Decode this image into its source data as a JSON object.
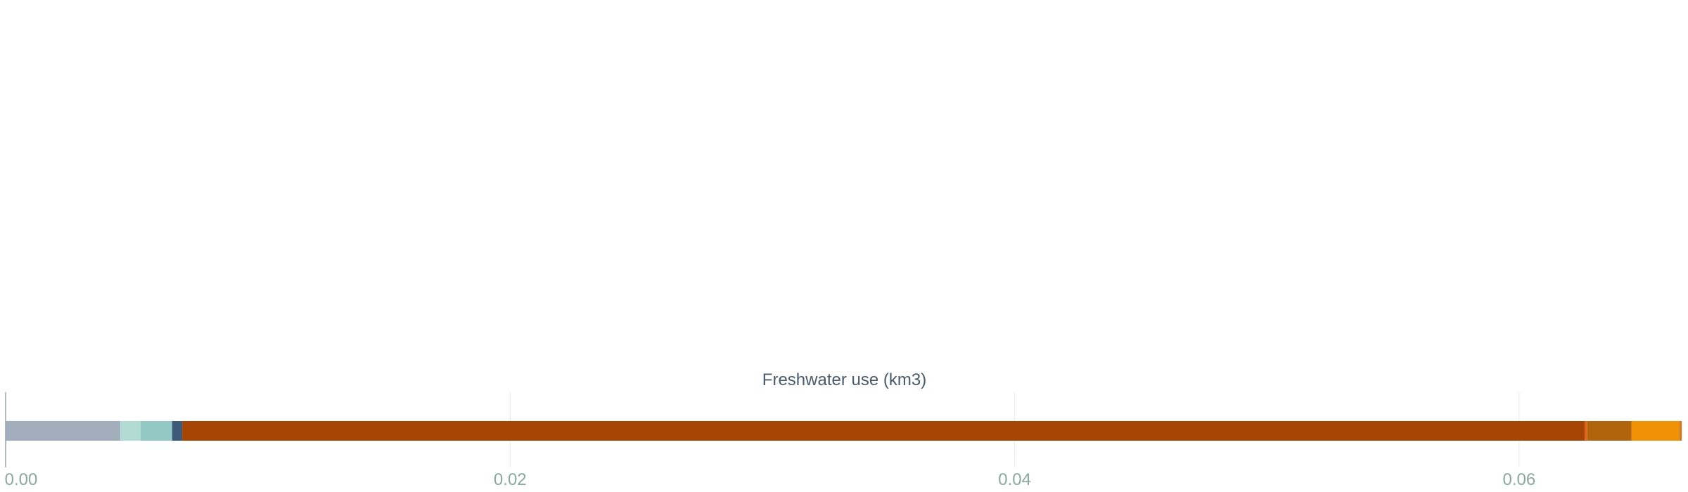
{
  "chart_data": {
    "type": "bar",
    "orientation": "horizontal",
    "stacked": true,
    "xlabel": "Freshwater use (km3)",
    "xlim": [
      0,
      0.0665
    ],
    "ticks": [
      {
        "value": 0.0,
        "label": "0.00"
      },
      {
        "value": 0.02,
        "label": "0.02"
      },
      {
        "value": 0.04,
        "label": "0.04"
      },
      {
        "value": 0.06,
        "label": "0.06"
      }
    ],
    "grid": true,
    "legend": "none",
    "segments": [
      {
        "value": 0.00455,
        "color": "#a2aebb"
      },
      {
        "value": 0.0008,
        "color": "#b3dbd6"
      },
      {
        "value": 0.00125,
        "color": "#93c8c5"
      },
      {
        "value": 0.0004,
        "color": "#3d5a78"
      },
      {
        "value": 0.0556,
        "color": "#a54505"
      },
      {
        "value": 0.0001,
        "color": "#e0631a"
      },
      {
        "value": 0.00175,
        "color": "#b0640b"
      },
      {
        "value": 0.0019,
        "color": "#f19206"
      },
      {
        "value": 0.0001,
        "color": "#d27a1e"
      }
    ]
  }
}
